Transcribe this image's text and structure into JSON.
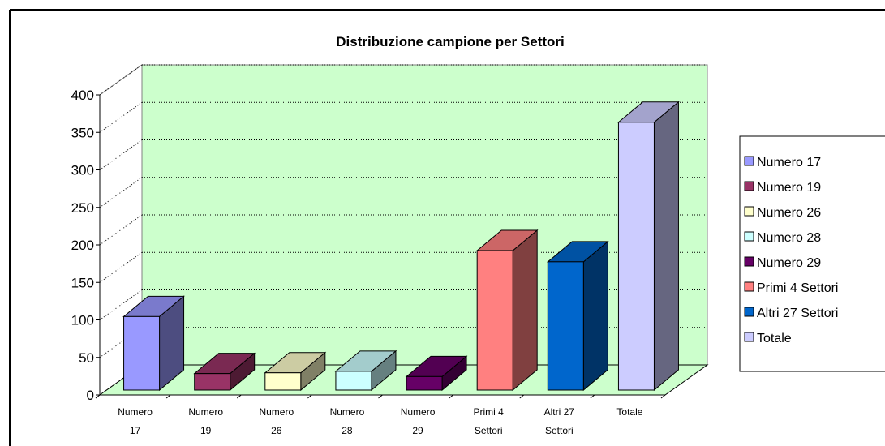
{
  "chart_data": {
    "type": "bar3d",
    "title": "Distribuzione campione per Settori",
    "categories": [
      "Numero 17",
      "Numero 19",
      "Numero 26",
      "Numero 28",
      "Numero 29",
      "Primi 4 Settori",
      "Altri 27 Settori",
      "Totale"
    ],
    "values": [
      98,
      22,
      23,
      25,
      18,
      186,
      171,
      357
    ],
    "colors": [
      "#9999ff",
      "#993366",
      "#ffffcc",
      "#ccffff",
      "#660066",
      "#ff8080",
      "#0066cc",
      "#ccccff"
    ],
    "ylim": [
      0,
      400
    ],
    "yticks": [
      0,
      50,
      100,
      150,
      200,
      250,
      300,
      350,
      400
    ],
    "grid": true,
    "wall_color": "#ccffcc",
    "legend": "right"
  }
}
